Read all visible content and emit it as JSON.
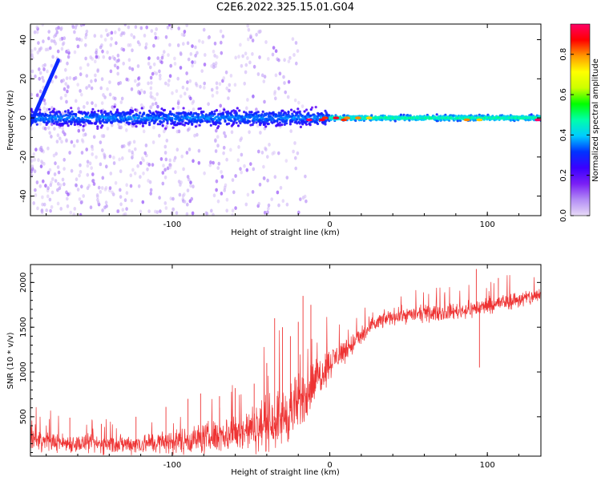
{
  "title": "C2E6.2022.325.15.01.G04",
  "chart_data": [
    {
      "type": "heatmap",
      "xlabel": "Height of straight line (km)",
      "ylabel": "Frequency (Hz)",
      "xlim": [
        -190,
        134
      ],
      "ylim": [
        -50,
        48
      ],
      "xticks": [
        -100,
        0,
        100
      ],
      "xtick_labels": [
        "-100",
        "0",
        "100"
      ],
      "yticks": [
        -40,
        -20,
        0,
        20,
        40
      ],
      "ytick_labels": [
        "-40",
        "-20",
        "0",
        "20",
        "40"
      ],
      "colorbar": {
        "label": "Normalized spectral amplitude",
        "range": [
          0,
          0.95
        ],
        "ticks": [
          0.0,
          0.2,
          0.4,
          0.6,
          0.8
        ],
        "tick_labels": [
          "0.0",
          "0.2",
          "0.4",
          "0.6",
          "0.8"
        ],
        "colormap": [
          "#e8dbf7",
          "#b38cf5",
          "#7a1ff5",
          "#3a00ff",
          "#0033ff",
          "#00ccff",
          "#00ffaa",
          "#00ff00",
          "#ccff00",
          "#ffff00",
          "#ff9900",
          "#ff0000",
          "#ff0066"
        ]
      },
      "features": {
        "steep_line": {
          "x": [
            -190,
            -172
          ],
          "y": [
            -3,
            30
          ],
          "value": 0.3
        },
        "main_band": {
          "x_range": [
            -190,
            134
          ],
          "frequency_hz": 0,
          "half_width_hz_left": 6,
          "half_width_hz_right": 2
        },
        "peak_points": [
          {
            "x": -13,
            "y": -1,
            "value": 0.95
          },
          {
            "x": -5,
            "y": -1,
            "value": 0.9
          },
          {
            "x": -3,
            "y": 0,
            "value": 0.85
          },
          {
            "x": 4,
            "y": 0,
            "value": 0.9
          },
          {
            "x": 9,
            "y": -1,
            "value": 0.85
          },
          {
            "x": 11,
            "y": 0,
            "value": 0.8
          },
          {
            "x": 18,
            "y": 0,
            "value": 0.8
          },
          {
            "x": 25,
            "y": 0,
            "value": 0.75
          },
          {
            "x": 87,
            "y": -1,
            "value": 0.8
          },
          {
            "x": 95,
            "y": -1,
            "value": 0.75
          },
          {
            "x": 132,
            "y": -1,
            "value": 0.95
          }
        ]
      }
    },
    {
      "type": "line",
      "xlabel": "Height of straight line (km)",
      "ylabel": "SNR (10 * v/v)",
      "xlim": [
        -190,
        134
      ],
      "ylim": [
        60,
        2200
      ],
      "xticks": [
        -100,
        0,
        100
      ],
      "xtick_labels": [
        "-100",
        "0",
        "100"
      ],
      "yticks": [
        500,
        1000,
        1500,
        2000
      ],
      "ytick_labels": [
        "500",
        "1000",
        "1500",
        "2000"
      ],
      "series": [
        {
          "color": "#ee3333",
          "x": [
            -190,
            -180,
            -170,
            -160,
            -150,
            -140,
            -130,
            -120,
            -110,
            -100,
            -90,
            -80,
            -70,
            -60,
            -50,
            -40,
            -30,
            -25,
            -20,
            -15,
            -10,
            -5,
            0,
            5,
            10,
            15,
            20,
            25,
            30,
            35,
            40,
            50,
            60,
            70,
            80,
            90,
            100,
            110,
            120,
            130,
            134
          ],
          "y": [
            250,
            230,
            210,
            200,
            195,
            190,
            195,
            200,
            210,
            220,
            240,
            260,
            290,
            320,
            360,
            420,
            500,
            560,
            640,
            760,
            880,
            1000,
            1100,
            1180,
            1250,
            1320,
            1400,
            1480,
            1550,
            1590,
            1620,
            1640,
            1650,
            1660,
            1680,
            1700,
            1740,
            1780,
            1810,
            1840,
            1860
          ],
          "noise_envelope": [
            170,
            160,
            150,
            150,
            150,
            150,
            160,
            170,
            180,
            200,
            220,
            250,
            280,
            320,
            360,
            420,
            480,
            500,
            480,
            420,
            380,
            320,
            260,
            220,
            200,
            180,
            170,
            150,
            140,
            130,
            130,
            130,
            130,
            130,
            130,
            140,
            140,
            140,
            140,
            140,
            140
          ],
          "spikes": [
            {
              "x": -165,
              "y": 490
            },
            {
              "x": -145,
              "y": 420
            },
            {
              "x": -123,
              "y": 500
            },
            {
              "x": -104,
              "y": 610
            },
            {
              "x": -90,
              "y": 700
            },
            {
              "x": -82,
              "y": 760
            },
            {
              "x": -70,
              "y": 730
            },
            {
              "x": -60,
              "y": 820
            },
            {
              "x": -48,
              "y": 870
            },
            {
              "x": -40,
              "y": 1100
            },
            {
              "x": -35,
              "y": 1600
            },
            {
              "x": -30,
              "y": 1500
            },
            {
              "x": -25,
              "y": 1400
            },
            {
              "x": -20,
              "y": 1560
            },
            {
              "x": -17,
              "y": 1850
            },
            {
              "x": -12,
              "y": 1750
            },
            {
              "x": 93,
              "y": 2150
            },
            {
              "x": 107,
              "y": 2050
            },
            {
              "x": 95,
              "y": 1050
            }
          ]
        }
      ]
    }
  ]
}
